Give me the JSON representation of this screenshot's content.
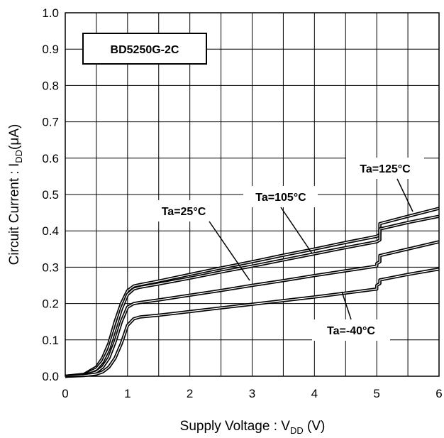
{
  "chart_data": {
    "type": "line",
    "title": "",
    "xlabel": "Supply Voltage : V",
    "xlabel_sub": "DD",
    "xlabel_suffix": " (V)",
    "ylabel": "Circuit Current : I",
    "ylabel_sub": "DD",
    "ylabel_suffix": "(μA)",
    "xlim": [
      0,
      6
    ],
    "ylim": [
      0,
      1.0
    ],
    "xticks": [
      "0",
      "1",
      "2",
      "3",
      "4",
      "5",
      "6"
    ],
    "yticks": [
      "0.0",
      "0.1",
      "0.2",
      "0.3",
      "0.4",
      "0.5",
      "0.6",
      "0.7",
      "0.8",
      "0.9",
      "1.0"
    ],
    "grid": true,
    "legend_box": "BD5250G-2C",
    "series": [
      {
        "name": "Ta=125°C",
        "x": [
          0,
          0.3,
          0.5,
          0.6,
          0.7,
          0.8,
          0.9,
          1.0,
          1.1,
          1.2,
          1.5,
          2,
          2.5,
          3,
          3.5,
          4,
          4.5,
          5.0,
          5.0,
          5.05,
          5.05,
          5.5,
          6.0
        ],
        "y": [
          0,
          0.005,
          0.025,
          0.05,
          0.09,
          0.15,
          0.2,
          0.235,
          0.248,
          0.252,
          0.262,
          0.28,
          0.298,
          0.315,
          0.333,
          0.35,
          0.368,
          0.385,
          0.385,
          0.39,
          0.42,
          0.44,
          0.462
        ]
      },
      {
        "name": "Ta=105°C",
        "x": [
          0,
          0.3,
          0.5,
          0.6,
          0.7,
          0.8,
          0.9,
          1.0,
          1.1,
          1.2,
          1.5,
          2,
          2.5,
          3,
          3.5,
          4,
          4.5,
          5.0,
          5.0,
          5.05,
          5.05,
          5.5,
          6.0
        ],
        "y": [
          0,
          0.004,
          0.02,
          0.04,
          0.075,
          0.13,
          0.185,
          0.225,
          0.24,
          0.245,
          0.254,
          0.27,
          0.287,
          0.303,
          0.32,
          0.337,
          0.354,
          0.37,
          0.37,
          0.375,
          0.405,
          0.423,
          0.44
        ]
      },
      {
        "name": "Ta=25°C",
        "x": [
          0,
          0.3,
          0.5,
          0.6,
          0.7,
          0.8,
          0.9,
          1.0,
          1.1,
          1.2,
          1.5,
          2,
          2.5,
          3,
          3.5,
          4,
          4.5,
          5.0,
          5.0,
          5.05,
          5.05,
          5.5,
          6.0
        ],
        "y": [
          0,
          0.003,
          0.012,
          0.025,
          0.05,
          0.095,
          0.15,
          0.19,
          0.2,
          0.203,
          0.21,
          0.223,
          0.236,
          0.25,
          0.263,
          0.277,
          0.29,
          0.303,
          0.31,
          0.315,
          0.332,
          0.35,
          0.37
        ]
      },
      {
        "name": "Ta=-40°C",
        "x": [
          0,
          0.3,
          0.5,
          0.6,
          0.7,
          0.8,
          0.9,
          1.0,
          1.1,
          1.2,
          1.5,
          2,
          2.5,
          3,
          3.5,
          4,
          4.5,
          5.0,
          5.0,
          5.05,
          5.05,
          5.5,
          6.0
        ],
        "y": [
          0,
          0.002,
          0.006,
          0.012,
          0.025,
          0.05,
          0.09,
          0.14,
          0.158,
          0.163,
          0.168,
          0.178,
          0.188,
          0.198,
          0.208,
          0.218,
          0.229,
          0.24,
          0.25,
          0.255,
          0.265,
          0.28,
          0.295
        ]
      }
    ],
    "annotations": [
      {
        "text": "Ta=125°C",
        "series": 0
      },
      {
        "text": "Ta=105°C",
        "series": 1
      },
      {
        "text": "Ta=25°C",
        "series": 2
      },
      {
        "text": "Ta=-40°C",
        "series": 3
      }
    ]
  }
}
